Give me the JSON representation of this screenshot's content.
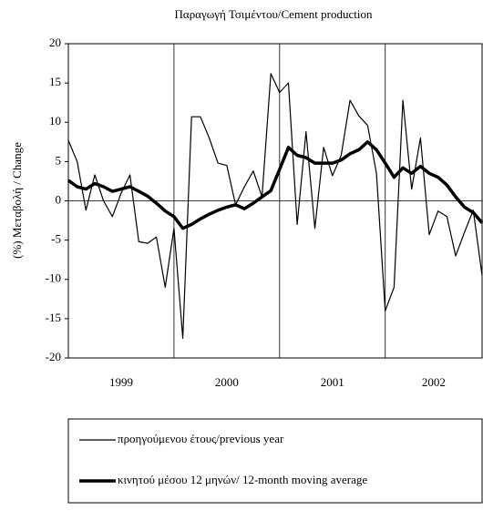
{
  "chart_data": {
    "type": "line",
    "title": "Παραγωγή Τσιμέντου/Cement production",
    "y_label": "(%) Μεταβολή / Change",
    "categories": [
      null,
      null,
      null,
      null,
      null,
      "1999",
      null,
      null,
      null,
      null,
      null,
      null,
      null,
      null,
      null,
      null,
      null,
      "2000",
      null,
      null,
      null,
      null,
      null,
      null,
      null,
      null,
      null,
      null,
      null,
      "2001",
      null,
      null,
      null,
      null,
      null,
      null,
      null,
      null,
      null,
      null,
      null,
      "2002",
      null,
      null,
      null,
      null,
      null,
      null
    ],
    "series": [
      {
        "name": "προηγούμενου έτους/previous year",
        "color": "#000000",
        "width": 1.2,
        "values": [
          7.7,
          5,
          -1.2,
          3.3,
          0,
          -2,
          1,
          3.3,
          -5.2,
          -5.4,
          -4.6,
          -11,
          -3.5,
          -17.5,
          10.7,
          10.7,
          8,
          4.8,
          4.5,
          -0.5,
          1.8,
          3.8,
          0.5,
          16.2,
          13.8,
          15,
          -3,
          8.8,
          -3.5,
          6.8,
          3.2,
          5.8,
          12.8,
          10.8,
          9.6,
          3.5,
          -14,
          -11,
          12.8,
          1.5,
          8,
          -4.3,
          -1.3,
          -2,
          -7,
          -4,
          -1.2,
          -9.5
        ]
      },
      {
        "name": "κινητού μέσου 12 μηνών/ 12-month moving average",
        "color": "#000000",
        "width": 3.5,
        "values": [
          2.6,
          1.8,
          1.5,
          2.2,
          1.8,
          1.2,
          1.5,
          1.8,
          1.2,
          0.6,
          -0.3,
          -1.3,
          -2,
          -3.5,
          -3,
          -2.3,
          -1.7,
          -1.2,
          -0.8,
          -0.5,
          -1,
          -0.3,
          0.5,
          1.3,
          4,
          6.8,
          5.8,
          5.5,
          4.8,
          4.8,
          4.8,
          5.2,
          6,
          6.5,
          7.5,
          6.5,
          4.8,
          3,
          4.2,
          3.5,
          4.4,
          3.5,
          3,
          2,
          0.5,
          -0.8,
          -1.5,
          -2.8
        ]
      }
    ],
    "ylim": [
      -20,
      20
    ],
    "yticks": [
      -20,
      -15,
      -10,
      -5,
      0,
      5,
      10,
      15,
      20
    ],
    "legend": "bottom"
  }
}
